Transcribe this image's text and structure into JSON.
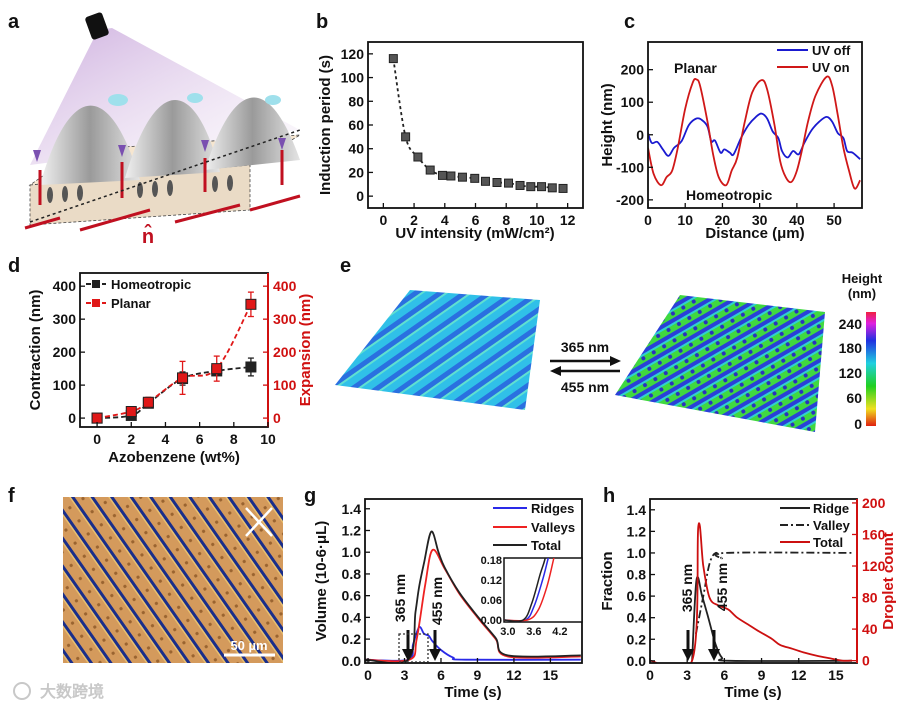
{
  "panel_labels": [
    "a",
    "b",
    "c",
    "d",
    "e",
    "f",
    "g",
    "h"
  ],
  "panel_a": {
    "director_label": "n̂"
  },
  "panel_e": {
    "arrow_top_label": "365 nm",
    "arrow_bottom_label": "455 nm",
    "colorbar_title_1": "Height",
    "colorbar_title_2": "(nm)",
    "colorbar_ticks": [
      "240",
      "180",
      "120",
      "60",
      "0"
    ]
  },
  "panel_f": {
    "scale_bar": "50 µm"
  },
  "watermark": "大数跨境",
  "chart_data": [
    {
      "id": "b",
      "type": "scatter",
      "xlabel": "UV intensity (mW/cm²)",
      "ylabel": "Induction period (s)",
      "xlim": [
        -1,
        13
      ],
      "ylim": [
        -10,
        130
      ],
      "xticks": [
        0,
        2,
        4,
        6,
        8,
        10,
        12
      ],
      "yticks": [
        0,
        20,
        40,
        60,
        80,
        100,
        120
      ],
      "legend": "none",
      "series": [
        {
          "name": "Induction period",
          "color": "#222222",
          "dash": "3,3",
          "marker": "square",
          "x": [
            0.65,
            1.45,
            2.25,
            3.05,
            3.85,
            4.4,
            5.15,
            5.95,
            6.65,
            7.4,
            8.15,
            8.9,
            9.6,
            10.3,
            11.0,
            11.7
          ],
          "y": [
            116,
            50,
            33,
            22,
            17.5,
            17,
            16,
            15,
            12.5,
            11.5,
            11,
            9,
            8,
            8,
            7,
            6.5
          ]
        }
      ]
    },
    {
      "id": "c",
      "type": "line",
      "xlabel": "Distance (μm)",
      "ylabel": "Height (nm)",
      "xlim": [
        0,
        57.5
      ],
      "ylim": [
        -225,
        285
      ],
      "xticks": [
        0,
        10,
        20,
        30,
        40,
        50
      ],
      "yticks": [
        -200,
        -100,
        0,
        100,
        200
      ],
      "legend": "top-right",
      "annotations": [
        "Planar",
        "Homeotropic"
      ],
      "series": [
        {
          "name": "UV off",
          "color": "#1a1ad0",
          "x": [
            0,
            1,
            2.5,
            4,
            5.5,
            7,
            9,
            11,
            13,
            14.5,
            16,
            17,
            18,
            19.5,
            20.5,
            22,
            23,
            25,
            27,
            29,
            30.5,
            32,
            33.5,
            35,
            36,
            37.5,
            39,
            40.5,
            42,
            44,
            46,
            48,
            49.5,
            51,
            52.5,
            53.5,
            55,
            57
          ],
          "y": [
            5,
            -25,
            -22,
            -45,
            -65,
            -40,
            -20,
            30,
            50,
            45,
            25,
            -20,
            -18,
            -55,
            -45,
            -55,
            -60,
            -10,
            30,
            55,
            65,
            50,
            10,
            -10,
            -50,
            -70,
            -50,
            -60,
            -25,
            15,
            40,
            55,
            40,
            5,
            -10,
            -50,
            -55,
            -75
          ]
        },
        {
          "name": "UV on",
          "color": "#d01818",
          "x": [
            0,
            1.5,
            3.5,
            5,
            6.5,
            8,
            10,
            12,
            13,
            14,
            16,
            17.5,
            19,
            21,
            22.5,
            24,
            26,
            28,
            30.5,
            32,
            34,
            35.5,
            37,
            38.5,
            40,
            41.5,
            43,
            45,
            48,
            49.5,
            51,
            52.5,
            54,
            55.5,
            57
          ],
          "y": [
            -40,
            -120,
            -155,
            -130,
            -110,
            -40,
            80,
            160,
            170,
            150,
            40,
            -60,
            -130,
            -155,
            -110,
            -70,
            40,
            130,
            168,
            140,
            30,
            -80,
            -130,
            -145,
            -110,
            -40,
            40,
            120,
            178,
            150,
            60,
            -40,
            -110,
            -165,
            -140
          ]
        }
      ]
    },
    {
      "id": "d",
      "type": "scatter",
      "xlabel": "Azobenzene (wt%)",
      "ylabel": "Contraction (nm)",
      "y2label": "Expansion (nm)",
      "xlim": [
        -1,
        10
      ],
      "ylim": [
        -27,
        440
      ],
      "y2lim": [
        -27,
        440
      ],
      "xticks": [
        0,
        2,
        4,
        6,
        8,
        10
      ],
      "yticks": [
        0,
        100,
        200,
        300,
        400
      ],
      "y2ticks": [
        0,
        100,
        200,
        300,
        400
      ],
      "legend": "top-left",
      "series": [
        {
          "name": "Homeotropic",
          "color": "#222222",
          "dash": "5,3",
          "marker": "square",
          "x": [
            0,
            2,
            3,
            5,
            7,
            9
          ],
          "y": [
            0,
            8,
            45,
            120,
            143,
            155
          ],
          "err": [
            0,
            5,
            10,
            20,
            10,
            27
          ]
        },
        {
          "name": "Planar",
          "color": "#e01818",
          "dash": "5,3",
          "marker": "square",
          "axis": "right",
          "x": [
            0,
            2,
            3,
            5,
            7,
            9
          ],
          "y": [
            0,
            20,
            48,
            122,
            150,
            345
          ],
          "err": [
            0,
            8,
            15,
            50,
            38,
            37
          ]
        }
      ]
    },
    {
      "id": "g",
      "type": "line",
      "xlabel": "Time (s)",
      "ylabel": "Volume (10-6·μL)",
      "xlim": [
        -0.25,
        17.6
      ],
      "ylim": [
        -0.02,
        1.49
      ],
      "xticks": [
        0,
        3,
        6,
        9,
        12,
        15
      ],
      "yticks": [
        "0.0",
        "0.2",
        "0.4",
        "0.6",
        "0.8",
        "1.0",
        "1.2",
        "1.4"
      ],
      "legend": "top-right",
      "annotations": [
        "365 nm",
        "455 nm"
      ],
      "series": [
        {
          "name": "Ridges",
          "color": "#2a2ae8",
          "x": [
            -0.2,
            3.3,
            3.7,
            4.2,
            4.6,
            5.0,
            5.3,
            6.0,
            7.0,
            8.0,
            17.5
          ],
          "y": [
            0.01,
            0.01,
            0.15,
            0.31,
            0.25,
            0.23,
            0.18,
            0.1,
            0.03,
            0.01,
            0.01
          ]
        },
        {
          "name": "Valleys",
          "color": "#ee2222",
          "x": [
            -0.2,
            3.4,
            4.0,
            4.7,
            5.3,
            6.3,
            7.5,
            9.0,
            10.5,
            11.5,
            17.5
          ],
          "y": [
            0.01,
            0.01,
            0.2,
            0.7,
            1.02,
            0.85,
            0.62,
            0.4,
            0.2,
            0.04,
            0.04
          ]
        },
        {
          "name": "Total",
          "color": "#222222",
          "x": [
            -0.2,
            3.3,
            3.9,
            4.2,
            4.6,
            5.2,
            5.8,
            6.3,
            7.5,
            9.0,
            10.5,
            11.5,
            17.5
          ],
          "y": [
            0.01,
            0.01,
            0.45,
            0.68,
            0.9,
            1.19,
            1.0,
            0.86,
            0.63,
            0.41,
            0.21,
            0.05,
            0.05
          ]
        }
      ],
      "inset": {
        "xlim": [
          2.91,
          4.71
        ],
        "ylim": [
          -0.006,
          0.186
        ],
        "xticks": [
          "3.0",
          "3.6",
          "4.2"
        ],
        "yticks": [
          "0.00",
          "0.06",
          "0.12",
          "0.18"
        ],
        "series": [
          {
            "name": "Ridges",
            "color": "#2a2ae8",
            "x": [
              2.9,
              3.4,
              3.6,
              3.8,
              3.92,
              4.0
            ],
            "y": [
              0,
              0,
              0.04,
              0.12,
              0.18,
              0.22
            ]
          },
          {
            "name": "Valleys",
            "color": "#ee2222",
            "x": [
              2.9,
              3.45,
              3.7,
              3.9,
              4.05,
              4.15
            ],
            "y": [
              0,
              0,
              0.03,
              0.1,
              0.18,
              0.24
            ]
          },
          {
            "name": "Total",
            "color": "#222222",
            "x": [
              2.9,
              3.35,
              3.55,
              3.75,
              3.85,
              3.95
            ],
            "y": [
              0,
              0,
              0.05,
              0.14,
              0.18,
              0.24
            ]
          }
        ]
      }
    },
    {
      "id": "h",
      "type": "line",
      "xlabel": "Time (s)",
      "ylabel": "Fraction",
      "y2label": "Droplet count",
      "xlim": [
        0,
        16.7
      ],
      "ylim": [
        -0.02,
        1.5
      ],
      "y2lim": [
        -3,
        205
      ],
      "xticks": [
        0,
        3,
        6,
        9,
        12,
        15
      ],
      "yticks": [
        "0.0",
        "0.2",
        "0.4",
        "0.6",
        "0.8",
        "1.0",
        "1.2",
        "1.4"
      ],
      "y2ticks": [
        0,
        40,
        80,
        120,
        160,
        200
      ],
      "legend": "top-right",
      "annotations": [
        "365 nm",
        "455 nm"
      ],
      "series": [
        {
          "name": "Ridge",
          "color": "#222222",
          "x": [
            3.4,
            3.75,
            4.2,
            4.7,
            5.3,
            5.8,
            6.5,
            16.3
          ],
          "y": [
            0,
            0.75,
            0.6,
            0.4,
            0.15,
            0.03,
            0,
            0
          ]
        },
        {
          "name": "Valley",
          "color": "#222222",
          "dash": "8,3,2,3",
          "x": [
            3.7,
            4.3,
            4.8,
            5.3,
            5.8,
            6.1,
            16.3
          ],
          "y": [
            0.25,
            0.6,
            0.9,
            1.0,
            0.95,
            1.0,
            1.0
          ]
        },
        {
          "name": "Total",
          "color": "#cc1010",
          "axis": "right",
          "x": [
            0,
            3.4,
            3.9,
            4.3,
            4.8,
            5.5,
            6.3,
            7.0,
            8.0,
            8.7,
            9.8,
            10.5,
            11.5,
            12.5,
            13.5,
            14.5,
            15.5,
            16.3
          ],
          "y": [
            0,
            0,
            170,
            120,
            80,
            70,
            65,
            55,
            45,
            38,
            28,
            20,
            15,
            10,
            6,
            3,
            0,
            0
          ]
        }
      ]
    }
  ]
}
